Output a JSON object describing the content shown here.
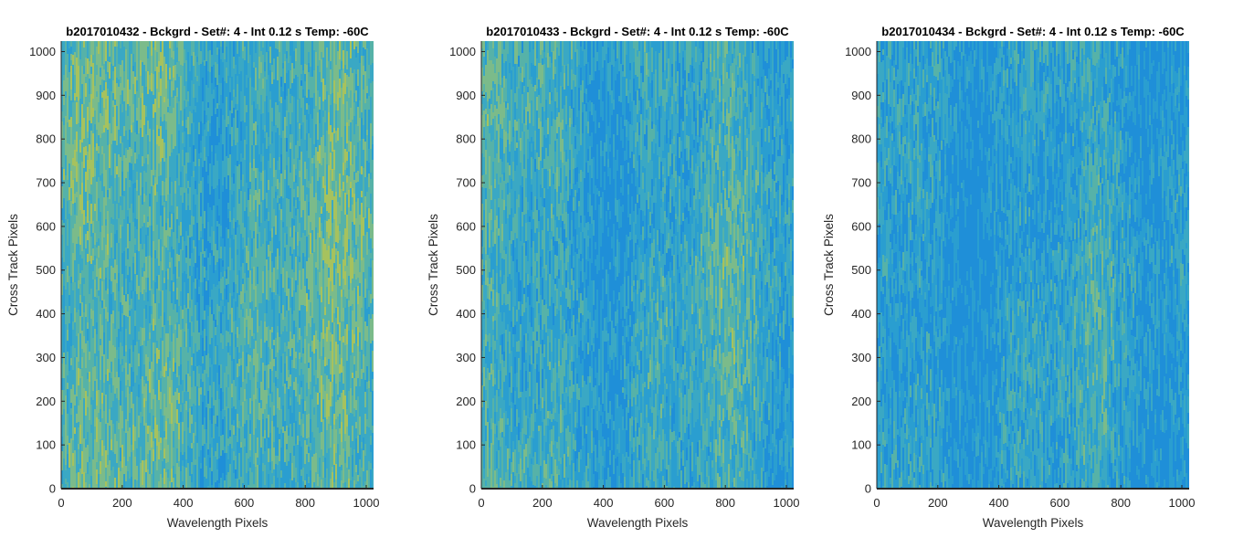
{
  "figure": {
    "colormap": [
      "#1f8fd8",
      "#2a9ed0",
      "#3aa8c4",
      "#56b2a8",
      "#7bbb8a",
      "#a6c25e"
    ],
    "axis_color": "#262626"
  },
  "chart_data": [
    {
      "type": "heatmap",
      "title": "b2017010432 - Bckgrd - Set#: 4 - Int 0.12 s Temp: -60C",
      "xlabel": "Wavelength Pixels",
      "ylabel": "Cross Track Pixels",
      "xlim": [
        0,
        1024
      ],
      "ylim": [
        0,
        1024
      ],
      "xticks": [
        0,
        200,
        400,
        600,
        800,
        1000
      ],
      "yticks": [
        0,
        100,
        200,
        300,
        400,
        500,
        600,
        700,
        800,
        900,
        1000
      ],
      "mean_level": 0.5
    },
    {
      "type": "heatmap",
      "title": "b2017010433 - Bckgrd - Set#: 4 - Int 0.12 s Temp: -60C",
      "xlabel": "Wavelength Pixels",
      "ylabel": "Cross Track Pixels",
      "xlim": [
        0,
        1024
      ],
      "ylim": [
        0,
        1024
      ],
      "xticks": [
        0,
        200,
        400,
        600,
        800,
        1000
      ],
      "yticks": [
        0,
        100,
        200,
        300,
        400,
        500,
        600,
        700,
        800,
        900,
        1000
      ],
      "mean_level": 0.36
    },
    {
      "type": "heatmap",
      "title": "b2017010434 - Bckgrd - Set#: 4 - Int 0.12 s Temp: -60C",
      "xlabel": "Wavelength Pixels",
      "ylabel": "Cross Track Pixels",
      "xlim": [
        0,
        1024
      ],
      "ylim": [
        0,
        1024
      ],
      "xticks": [
        0,
        200,
        400,
        600,
        800,
        1000
      ],
      "yticks": [
        0,
        100,
        200,
        300,
        400,
        500,
        600,
        700,
        800,
        900,
        1000
      ],
      "mean_level": 0.26
    }
  ]
}
